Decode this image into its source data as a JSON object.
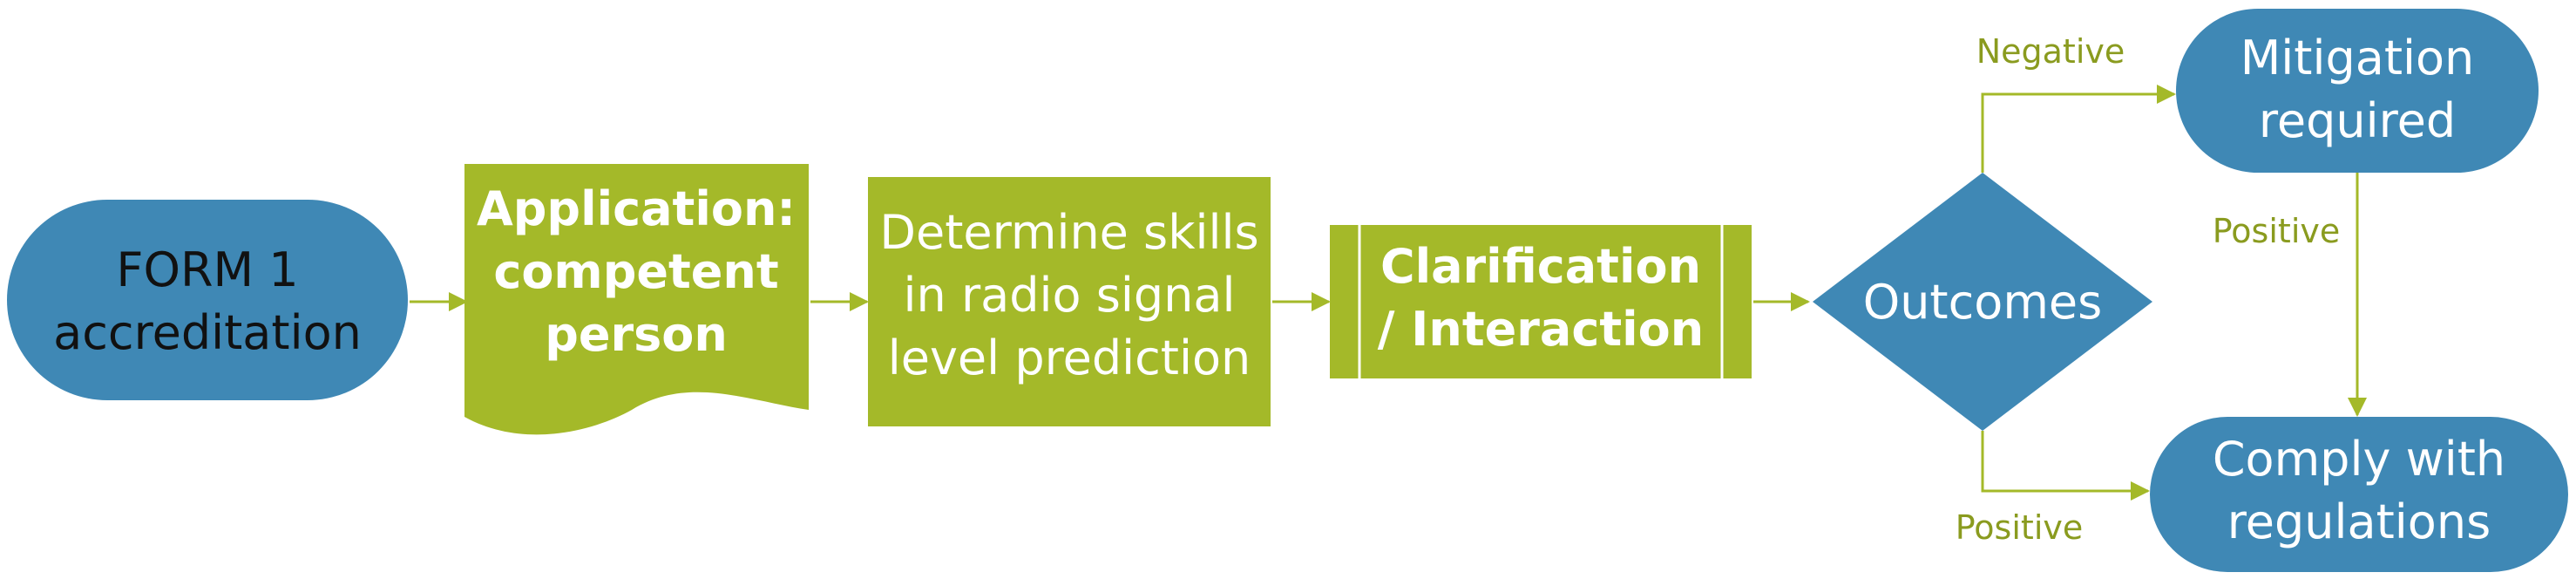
{
  "colors": {
    "blue": "#3f88b5",
    "green": "#a4b929",
    "connector": "#a4b929",
    "label": "#8a9b1f",
    "dark_text": "#111111",
    "light_text": "#ffffff"
  },
  "nodes": {
    "form1": {
      "line1": "FORM 1",
      "line2": "accreditation"
    },
    "application": {
      "line1": "Application:",
      "line2": "competent",
      "line3": "person"
    },
    "determine": {
      "line1": "Determine skills",
      "line2": "in radio signal",
      "line3": "level prediction"
    },
    "clarification": {
      "line1": "Clarification",
      "line2": "/ Interaction"
    },
    "outcomes": {
      "label": "Outcomes"
    },
    "mitigation": {
      "line1": "Mitigation",
      "line2": "required"
    },
    "comply": {
      "line1": "Comply with",
      "line2": "regulations"
    }
  },
  "edges": {
    "negative_label": "Negative",
    "positive_label_right": "Positive",
    "positive_label_bottom": "Positive"
  }
}
